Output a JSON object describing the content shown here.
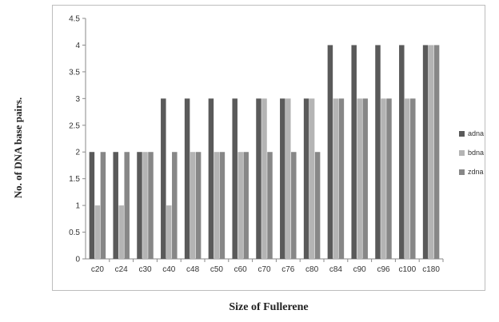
{
  "chart_data": {
    "type": "bar",
    "categories": [
      "c20",
      "c24",
      "c30",
      "c40",
      "c48",
      "c50",
      "c60",
      "c70",
      "c76",
      "c80",
      "c84",
      "c90",
      "c96",
      "c100",
      "c180"
    ],
    "series": [
      {
        "name": "adna",
        "color": "#5a5a5a",
        "values": [
          2,
          2,
          2,
          3,
          3,
          3,
          3,
          3,
          3,
          3,
          4,
          4,
          4,
          4,
          4
        ]
      },
      {
        "name": "bdna",
        "color": "#b4b4b4",
        "values": [
          1,
          1,
          2,
          1,
          2,
          2,
          2,
          3,
          3,
          3,
          3,
          3,
          3,
          3,
          4
        ]
      },
      {
        "name": "zdna",
        "color": "#878787",
        "values": [
          2,
          2,
          2,
          2,
          2,
          2,
          2,
          2,
          2,
          2,
          3,
          3,
          3,
          3,
          4
        ]
      }
    ],
    "xlabel": "Size of Fullerene",
    "ylabel": "No. of DNA base pairs.",
    "ylim": [
      0,
      4.5
    ],
    "yticks": [
      "0",
      "0.5",
      "1",
      "1.5",
      "2",
      "2.5",
      "3",
      "3.5",
      "4",
      "4.5"
    ],
    "grid": false,
    "legend_position": "right"
  }
}
